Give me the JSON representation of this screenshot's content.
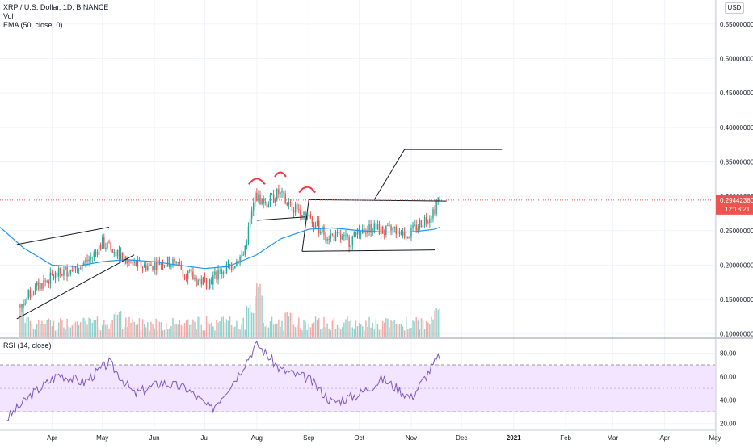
{
  "header": {
    "symbol_line": "XRP / U.S. Dollar, 1D, BINANCE",
    "vol_label": "Vol",
    "ema_label": "EMA (50, close, 0)",
    "currency_badge": "USD"
  },
  "rsi_panel": {
    "label": "RSI (14, close)"
  },
  "last_price": {
    "value": "0.29442380",
    "countdown": "12:18:21",
    "color": "#ef5350"
  },
  "colors": {
    "up": "#26a69a",
    "down": "#ef5350",
    "ema": "#2196f3",
    "rsi": "#7e57c2",
    "rsi_band": "#f3e5ff",
    "annotation_pattern": "#f23645",
    "annotation_lines": "#131722",
    "grid": "#f0f3fa",
    "axis_text": "#131722"
  },
  "chart_data": {
    "type": "candlestick",
    "title": "XRP / U.S. Dollar, 1D, BINANCE",
    "x_axis": {
      "ticks": [
        "Apr",
        "May",
        "Jun",
        "Jul",
        "Aug",
        "Sep",
        "Oct",
        "Nov",
        "Dec",
        "2021",
        "Feb",
        "Mar",
        "Apr",
        "May"
      ]
    },
    "price_axis": {
      "ticks": [
        "0.55000000",
        "0.50000000",
        "0.45000000",
        "0.40000000",
        "0.35000000",
        "0.30000000",
        "0.25000000",
        "0.20000000",
        "0.15000000",
        "0.10000000"
      ],
      "ylim": [
        0.095,
        0.585
      ]
    },
    "price_series": {
      "name": "XRP / U.S. Dollar",
      "x": [
        "2020-03-13",
        "2020-03-20",
        "2020-03-27",
        "2020-04-03",
        "2020-04-10",
        "2020-04-17",
        "2020-04-24",
        "2020-05-01",
        "2020-05-08",
        "2020-05-15",
        "2020-05-22",
        "2020-05-29",
        "2020-06-05",
        "2020-06-12",
        "2020-06-19",
        "2020-06-26",
        "2020-07-03",
        "2020-07-10",
        "2020-07-17",
        "2020-07-24",
        "2020-07-31",
        "2020-08-07",
        "2020-08-14",
        "2020-08-21",
        "2020-08-28",
        "2020-09-04",
        "2020-09-11",
        "2020-09-18",
        "2020-09-25",
        "2020-10-02",
        "2020-10-09",
        "2020-10-16",
        "2020-10-23",
        "2020-10-30",
        "2020-11-06",
        "2020-11-13",
        "2020-11-18"
      ],
      "close": [
        0.14,
        0.162,
        0.175,
        0.185,
        0.192,
        0.198,
        0.21,
        0.232,
        0.22,
        0.205,
        0.2,
        0.198,
        0.205,
        0.203,
        0.19,
        0.178,
        0.175,
        0.19,
        0.2,
        0.215,
        0.3,
        0.29,
        0.305,
        0.285,
        0.28,
        0.26,
        0.245,
        0.24,
        0.235,
        0.25,
        0.255,
        0.248,
        0.252,
        0.243,
        0.26,
        0.275,
        0.2944238
      ]
    },
    "ema_series": {
      "name": "EMA (50, close, 0)",
      "x": [
        "2020-03-01",
        "2020-03-15",
        "2020-04-01",
        "2020-04-15",
        "2020-05-01",
        "2020-05-15",
        "2020-06-01",
        "2020-06-15",
        "2020-07-01",
        "2020-07-15",
        "2020-08-01",
        "2020-08-15",
        "2020-09-01",
        "2020-09-15",
        "2020-10-01",
        "2020-10-15",
        "2020-11-01",
        "2020-11-15",
        "2020-11-18"
      ],
      "values": [
        0.255,
        0.225,
        0.2,
        0.198,
        0.205,
        0.208,
        0.205,
        0.2,
        0.195,
        0.198,
        0.215,
        0.238,
        0.252,
        0.254,
        0.25,
        0.248,
        0.248,
        0.252,
        0.255
      ]
    },
    "volume_series": {
      "name": "Vol",
      "x": [
        "2020-03-13",
        "2020-04-15",
        "2020-05-10",
        "2020-06-15",
        "2020-07-10",
        "2020-07-28",
        "2020-08-02",
        "2020-08-20",
        "2020-09-05",
        "2020-10-01",
        "2020-10-25",
        "2020-11-17"
      ],
      "values": [
        0.7,
        0.3,
        0.5,
        0.2,
        0.35,
        0.6,
        1.0,
        0.5,
        0.35,
        0.2,
        0.25,
        0.55
      ]
    },
    "rsi_series": {
      "name": "RSI (14, close)",
      "x": [
        "2020-03-05",
        "2020-03-20",
        "2020-04-05",
        "2020-04-20",
        "2020-05-05",
        "2020-05-20",
        "2020-06-05",
        "2020-06-20",
        "2020-07-05",
        "2020-07-20",
        "2020-08-01",
        "2020-08-15",
        "2020-09-01",
        "2020-09-15",
        "2020-10-01",
        "2020-10-15",
        "2020-11-01",
        "2020-11-18"
      ],
      "values": [
        24,
        45,
        62,
        55,
        72,
        45,
        55,
        50,
        32,
        60,
        88,
        66,
        58,
        38,
        45,
        58,
        42,
        78
      ]
    },
    "rsi_axis": {
      "ticks": [
        "80.00",
        "60.00",
        "40.00",
        "20.00"
      ],
      "ylim": [
        15,
        92
      ],
      "band": [
        30,
        70
      ]
    },
    "annotations": [
      {
        "kind": "channel_upper",
        "points": [
          [
            "2020-03-11",
            0.23
          ],
          [
            "2020-05-05",
            0.255
          ]
        ]
      },
      {
        "kind": "channel_lower",
        "points": [
          [
            "2020-03-11",
            0.122
          ],
          [
            "2020-05-20",
            0.215
          ]
        ]
      },
      {
        "kind": "neckline",
        "points": [
          [
            "2020-08-01",
            0.265
          ],
          [
            "2020-08-30",
            0.27
          ]
        ]
      },
      {
        "kind": "range_top",
        "points": [
          [
            "2020-09-01",
            0.295
          ],
          [
            "2020-11-22",
            0.293
          ]
        ]
      },
      {
        "kind": "range_bottom",
        "points": [
          [
            "2020-08-28",
            0.22
          ],
          [
            "2020-11-15",
            0.222
          ]
        ]
      },
      {
        "kind": "range_left",
        "points": [
          [
            "2020-08-28",
            0.22
          ],
          [
            "2020-09-01",
            0.295
          ]
        ]
      },
      {
        "kind": "target_rise",
        "points": [
          [
            "2020-10-10",
            0.295
          ],
          [
            "2020-10-28",
            0.368
          ]
        ]
      },
      {
        "kind": "target_level",
        "points": [
          [
            "2020-10-28",
            0.368
          ],
          [
            "2020-12-25",
            0.368
          ]
        ]
      }
    ],
    "pattern_arcs": [
      {
        "name": "left-shoulder",
        "center": [
          "2020-08-01",
          0.322
        ]
      },
      {
        "name": "head",
        "center": [
          "2020-08-15",
          0.333
        ]
      },
      {
        "name": "right-shoulder",
        "center": [
          "2020-08-31",
          0.31
        ]
      }
    ]
  }
}
